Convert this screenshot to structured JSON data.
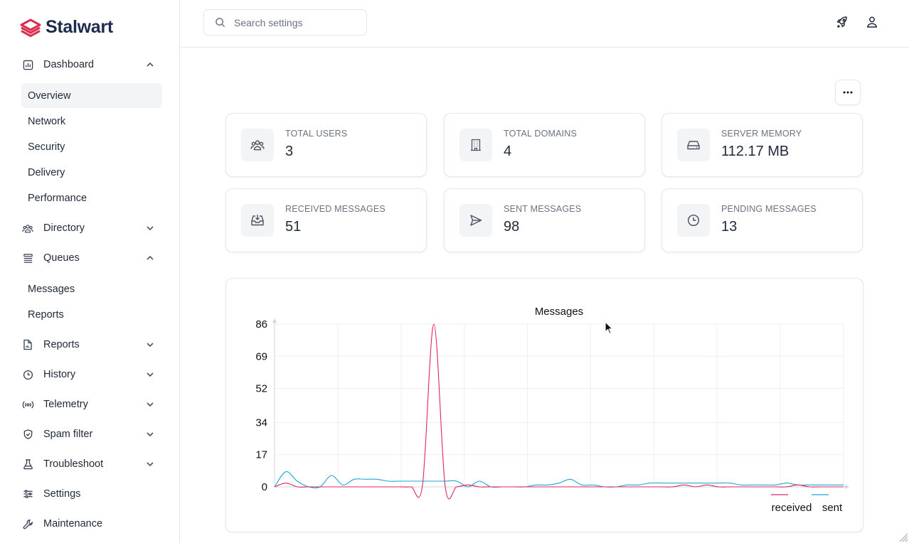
{
  "brand": {
    "name": "Stalwart",
    "color": "#d9304f"
  },
  "search": {
    "placeholder": "Search settings"
  },
  "sidebar": {
    "dashboard": {
      "label": "Dashboard",
      "sub": [
        "Overview",
        "Network",
        "Security",
        "Delivery",
        "Performance"
      ],
      "active": "Overview"
    },
    "directory": {
      "label": "Directory"
    },
    "queues": {
      "label": "Queues",
      "sub": [
        "Messages",
        "Reports"
      ]
    },
    "reports": {
      "label": "Reports"
    },
    "history": {
      "label": "History"
    },
    "telemetry": {
      "label": "Telemetry"
    },
    "spam_filter": {
      "label": "Spam filter"
    },
    "troubleshoot": {
      "label": "Troubleshoot"
    },
    "settings": {
      "label": "Settings"
    },
    "maintenance": {
      "label": "Maintenance"
    }
  },
  "stats": [
    {
      "label": "TOTAL USERS",
      "value": "3",
      "icon": "users-icon"
    },
    {
      "label": "TOTAL DOMAINS",
      "value": "4",
      "icon": "building-icon"
    },
    {
      "label": "SERVER MEMORY",
      "value": "112.17 MB",
      "icon": "hard-drive-icon"
    },
    {
      "label": "RECEIVED MESSAGES",
      "value": "51",
      "icon": "inbox-icon"
    },
    {
      "label": "SENT MESSAGES",
      "value": "98",
      "icon": "send-icon"
    },
    {
      "label": "PENDING MESSAGES",
      "value": "13",
      "icon": "clock-icon"
    }
  ],
  "chart_data": {
    "type": "line",
    "title": "Messages",
    "xlabel": "",
    "ylabel": "",
    "y_ticks": [
      0,
      17,
      34,
      52,
      69,
      86
    ],
    "ylim": [
      0,
      86
    ],
    "grid": true,
    "legend_position": "bottom-right",
    "x": [
      0,
      1,
      2,
      3,
      4,
      5,
      6,
      7,
      8,
      9,
      10,
      11,
      12,
      13,
      14,
      15,
      16,
      17,
      18,
      19,
      20,
      21,
      22,
      23,
      24,
      25,
      26,
      27,
      28,
      29,
      30,
      31,
      32,
      33,
      34,
      35,
      36,
      37,
      38,
      39,
      40,
      41,
      42,
      43,
      44,
      45,
      46,
      47,
      48,
      49,
      50
    ],
    "series": [
      {
        "name": "received",
        "color": "#e0245e",
        "values": [
          0,
          2,
          0,
          0,
          0,
          0,
          0,
          0,
          0,
          0,
          0,
          0,
          0,
          1,
          86,
          0,
          0,
          1,
          0,
          0,
          0,
          0,
          0,
          0,
          0,
          0,
          0,
          0,
          0,
          0,
          0,
          0,
          0,
          0,
          0,
          0,
          1,
          0,
          1,
          0,
          0,
          0,
          0,
          0,
          0,
          0,
          1,
          0,
          0,
          0,
          0
        ]
      },
      {
        "name": "sent",
        "color": "#1ea7d6",
        "values": [
          0,
          8,
          3,
          0,
          0,
          6,
          1,
          4,
          4,
          4,
          3,
          3,
          3,
          3,
          3,
          3,
          3,
          0,
          3,
          0,
          0,
          0,
          0,
          1,
          1,
          2,
          4,
          1,
          1,
          0,
          0,
          1,
          1,
          2,
          2,
          2,
          2,
          2,
          2,
          2,
          2,
          1,
          1,
          1,
          1,
          2,
          1,
          1,
          1,
          1,
          1
        ]
      }
    ]
  }
}
